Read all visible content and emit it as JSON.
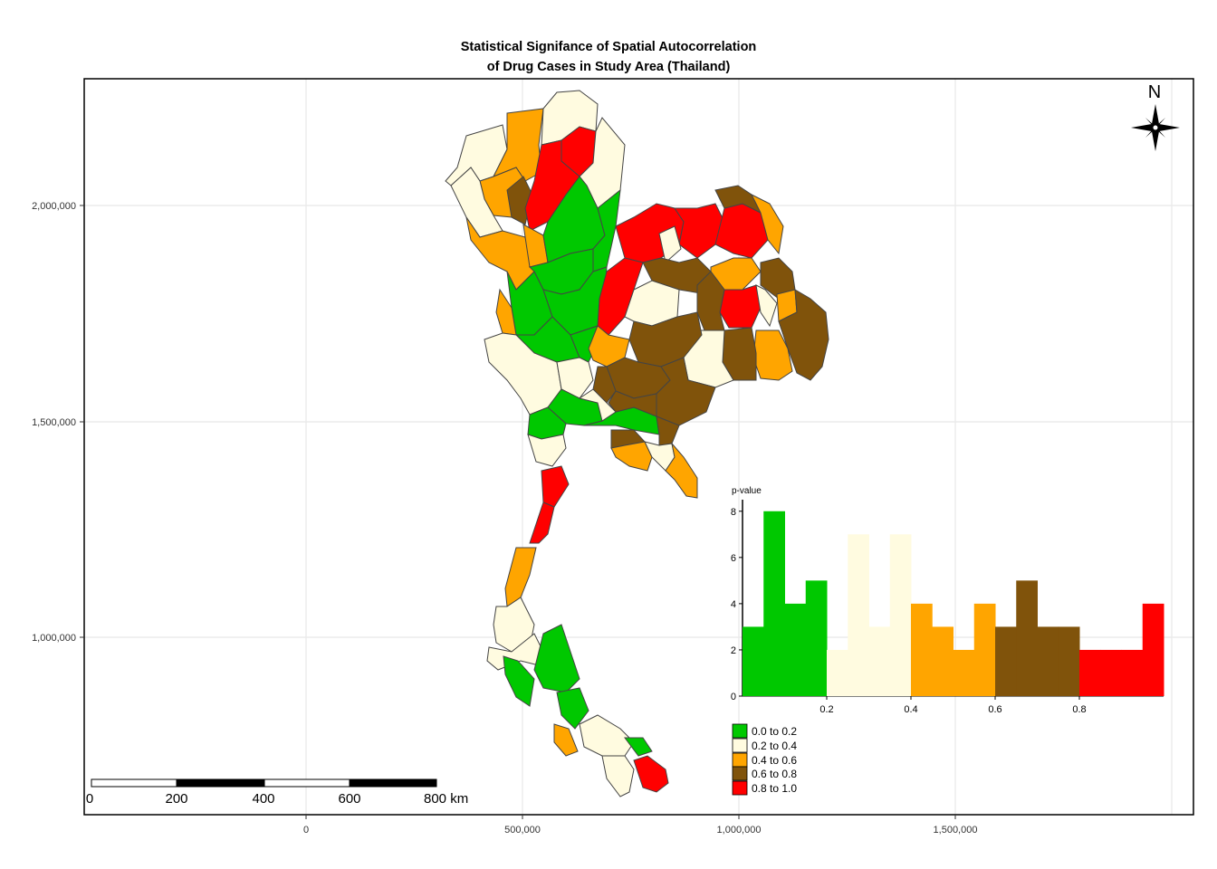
{
  "title_line1": "Statistical Signifance of Spatial Autocorrelation",
  "title_line2": "of Drug Cases in Study Area (Thailand)",
  "north_label": "N",
  "y_ticks": [
    "2,000,000",
    "1,500,000",
    "1,000,000"
  ],
  "x_ticks": [
    "0",
    "500,000",
    "1,000,000",
    "1,500,000"
  ],
  "scalebar": {
    "labels": [
      "0",
      "200",
      "400",
      "600",
      "800 km"
    ]
  },
  "colors": {
    "c1": "#00c800",
    "c2": "#fffbe0",
    "c3": "#ffa500",
    "c4": "#80530b",
    "c5": "#ff0000"
  },
  "legend": {
    "title": "p-value",
    "items": [
      {
        "label": "0.0 to 0.2",
        "color": "#00c800"
      },
      {
        "label": "0.2 to 0.4",
        "color": "#fffbe0"
      },
      {
        "label": "0.4 to 0.6",
        "color": "#ffa500"
      },
      {
        "label": "0.6 to 0.8",
        "color": "#80530b"
      },
      {
        "label": "0.8 to 1.0",
        "color": "#ff0000"
      }
    ]
  },
  "chart_data": {
    "type": "bar",
    "title": "p-value",
    "x_ticks": [
      "0.2",
      "0.4",
      "0.6",
      "0.8"
    ],
    "y_ticks": [
      "0",
      "2",
      "4",
      "6",
      "8"
    ],
    "ylim": [
      0,
      8.5
    ],
    "xlim": [
      0,
      1
    ],
    "bin_width": 0.05,
    "bins": [
      {
        "x0": 0.0,
        "count": 3,
        "class": 0
      },
      {
        "x0": 0.05,
        "count": 8,
        "class": 0
      },
      {
        "x0": 0.1,
        "count": 4,
        "class": 0
      },
      {
        "x0": 0.15,
        "count": 5,
        "class": 0
      },
      {
        "x0": 0.2,
        "count": 2,
        "class": 1
      },
      {
        "x0": 0.25,
        "count": 7,
        "class": 1
      },
      {
        "x0": 0.3,
        "count": 3,
        "class": 1
      },
      {
        "x0": 0.35,
        "count": 7,
        "class": 1
      },
      {
        "x0": 0.4,
        "count": 4,
        "class": 2
      },
      {
        "x0": 0.45,
        "count": 3,
        "class": 2
      },
      {
        "x0": 0.5,
        "count": 2,
        "class": 2
      },
      {
        "x0": 0.55,
        "count": 4,
        "class": 2
      },
      {
        "x0": 0.6,
        "count": 3,
        "class": 3
      },
      {
        "x0": 0.65,
        "count": 5,
        "class": 3
      },
      {
        "x0": 0.7,
        "count": 3,
        "class": 3
      },
      {
        "x0": 0.75,
        "count": 3,
        "class": 3
      },
      {
        "x0": 0.8,
        "count": 2,
        "class": 4
      },
      {
        "x0": 0.85,
        "count": 2,
        "class": 4
      },
      {
        "x0": 0.9,
        "count": 2,
        "class": 4
      },
      {
        "x0": 0.95,
        "count": 4,
        "class": 4
      }
    ]
  }
}
